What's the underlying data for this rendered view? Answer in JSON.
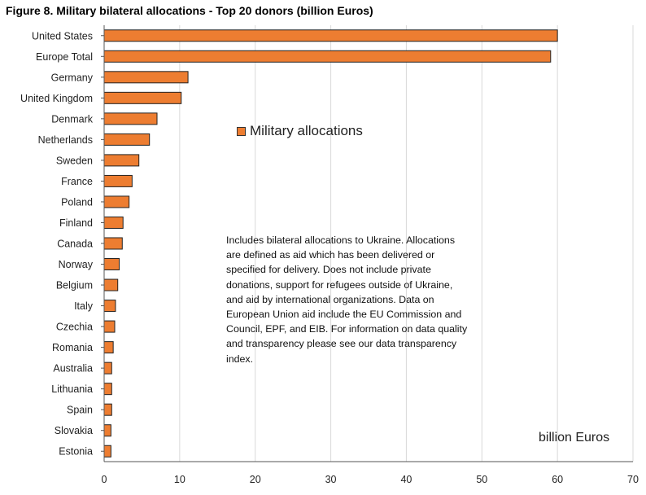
{
  "title": "Figure 8. Military bilateral allocations - Top 20 donors (billion Euros)",
  "legend": {
    "label": "Military allocations",
    "color": "#ED7D31"
  },
  "note": "Includes bilateral allocations to Ukraine. Allocations are defined as aid which has been delivered or specified for delivery. Does not include private donations, support for refugees outside of Ukraine, and aid by international organizations. Data on European Union aid include the EU Commission and Council, EPF, and EIB. For information on data quality and transparency please see our data transparency index.",
  "unit_label": "billion Euros",
  "chart_data": {
    "type": "bar",
    "orientation": "horizontal",
    "title": "Figure 8. Military bilateral allocations - Top 20 donors (billion Euros)",
    "xlabel": "billion Euros",
    "ylabel": "",
    "xlim": [
      0,
      70
    ],
    "xticks": [
      0,
      10,
      20,
      30,
      40,
      50,
      60,
      70
    ],
    "grid": "vertical",
    "legend_position": "upper-middle",
    "categories": [
      "United States",
      "Europe Total",
      "Germany",
      "United Kingdom",
      "Denmark",
      "Netherlands",
      "Sweden",
      "France",
      "Poland",
      "Finland",
      "Canada",
      "Norway",
      "Belgium",
      "Italy",
      "Czechia",
      "Romania",
      "Australia",
      "Lithuania",
      "Spain",
      "Slovakia",
      "Estonia"
    ],
    "series": [
      {
        "name": "Military allocations",
        "values": [
          60.0,
          59.1,
          11.1,
          10.2,
          7.0,
          6.0,
          4.6,
          3.7,
          3.3,
          2.5,
          2.4,
          2.0,
          1.8,
          1.5,
          1.4,
          1.2,
          1.0,
          1.0,
          1.0,
          0.9,
          0.9
        ]
      }
    ]
  }
}
